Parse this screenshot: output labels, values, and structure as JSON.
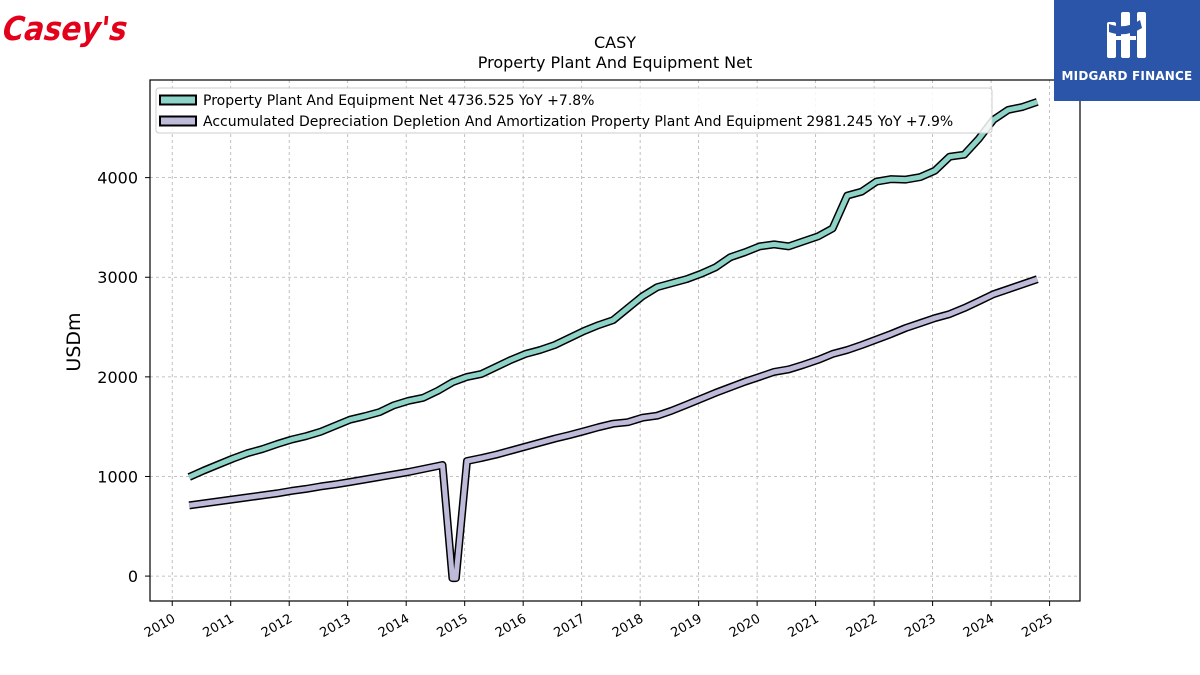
{
  "logos": {
    "left_text": "Casey's",
    "left_color": "#e3001b",
    "right_text": "MIDGARD FINANCE",
    "right_bg": "#2a55a8"
  },
  "chart_data": {
    "type": "line",
    "title": "CASY",
    "subtitle": "Property Plant And Equipment Net",
    "xlabel": "",
    "ylabel": "USDm",
    "xlim": [
      2009.62,
      2025.52
    ],
    "ylim": [
      -250,
      4980
    ],
    "x_ticks": [
      "2010",
      "2011",
      "2012",
      "2013",
      "2014",
      "2015",
      "2016",
      "2017",
      "2018",
      "2019",
      "2020",
      "2021",
      "2022",
      "2023",
      "2024",
      "2025"
    ],
    "y_ticks": [
      0,
      1000,
      2000,
      3000,
      4000
    ],
    "grid": true,
    "legend_position": "upper-left",
    "series": [
      {
        "name": "Property Plant And Equipment Net",
        "legend_label": "Property Plant And Equipment Net  4736.525 YoY +7.8%",
        "color": "#8dd3c7",
        "x": [
          2010.29,
          2010.54,
          2010.79,
          2011.04,
          2011.29,
          2011.54,
          2011.79,
          2012.04,
          2012.29,
          2012.54,
          2012.79,
          2013.04,
          2013.29,
          2013.54,
          2013.79,
          2014.04,
          2014.29,
          2014.54,
          2014.79,
          2015.04,
          2015.29,
          2015.54,
          2015.79,
          2016.04,
          2016.29,
          2016.54,
          2016.79,
          2017.04,
          2017.29,
          2017.54,
          2017.79,
          2018.04,
          2018.29,
          2018.54,
          2018.79,
          2019.04,
          2019.29,
          2019.54,
          2019.79,
          2020.04,
          2020.29,
          2020.54,
          2020.79,
          2021.04,
          2021.29,
          2021.54,
          2021.79,
          2022.04,
          2022.29,
          2022.54,
          2022.79,
          2023.04,
          2023.29,
          2023.54,
          2023.79,
          2024.04,
          2024.29,
          2024.54,
          2024.79
        ],
        "y": [
          995,
          1060,
          1120,
          1180,
          1235,
          1275,
          1325,
          1370,
          1405,
          1450,
          1510,
          1570,
          1605,
          1645,
          1715,
          1760,
          1790,
          1860,
          1945,
          2000,
          2030,
          2100,
          2170,
          2230,
          2270,
          2320,
          2390,
          2460,
          2520,
          2570,
          2690,
          2810,
          2900,
          2940,
          2980,
          3035,
          3100,
          3200,
          3250,
          3310,
          3330,
          3310,
          3360,
          3410,
          3490,
          3820,
          3860,
          3960,
          3985,
          3980,
          4005,
          4070,
          4210,
          4230,
          4390,
          4580,
          4680,
          4710,
          4760
        ]
      },
      {
        "name": "Accumulated Depreciation Depletion And Amortization Property Plant And Equipment",
        "legend_label": "Accumulated Depreciation Depletion And Amortization Property Plant And Equipment  2981.245 YoY +7.9%",
        "color": "#bebada",
        "x": [
          2010.29,
          2010.54,
          2010.79,
          2011.04,
          2011.29,
          2011.54,
          2011.79,
          2012.04,
          2012.29,
          2012.54,
          2012.79,
          2013.04,
          2013.29,
          2013.54,
          2013.79,
          2014.04,
          2014.29,
          2014.54,
          2014.62,
          2014.79,
          2014.85,
          2015.04,
          2015.29,
          2015.54,
          2015.79,
          2016.04,
          2016.29,
          2016.54,
          2016.79,
          2017.04,
          2017.29,
          2017.54,
          2017.79,
          2018.04,
          2018.29,
          2018.54,
          2018.79,
          2019.04,
          2019.29,
          2019.54,
          2019.79,
          2020.04,
          2020.29,
          2020.54,
          2020.79,
          2021.04,
          2021.29,
          2021.54,
          2021.79,
          2022.04,
          2022.29,
          2022.54,
          2022.79,
          2023.04,
          2023.29,
          2023.54,
          2023.79,
          2024.04,
          2024.29,
          2024.54,
          2024.79
        ],
        "y": [
          710,
          730,
          750,
          770,
          790,
          810,
          830,
          855,
          875,
          900,
          920,
          945,
          970,
          995,
          1020,
          1045,
          1075,
          1105,
          1115,
          -20,
          -20,
          1155,
          1185,
          1220,
          1260,
          1300,
          1340,
          1380,
          1415,
          1455,
          1495,
          1530,
          1545,
          1590,
          1610,
          1660,
          1720,
          1780,
          1840,
          1895,
          1950,
          2000,
          2050,
          2075,
          2120,
          2170,
          2230,
          2270,
          2320,
          2375,
          2430,
          2490,
          2540,
          2590,
          2630,
          2690,
          2760,
          2830,
          2880,
          2930,
          2980
        ]
      }
    ]
  }
}
